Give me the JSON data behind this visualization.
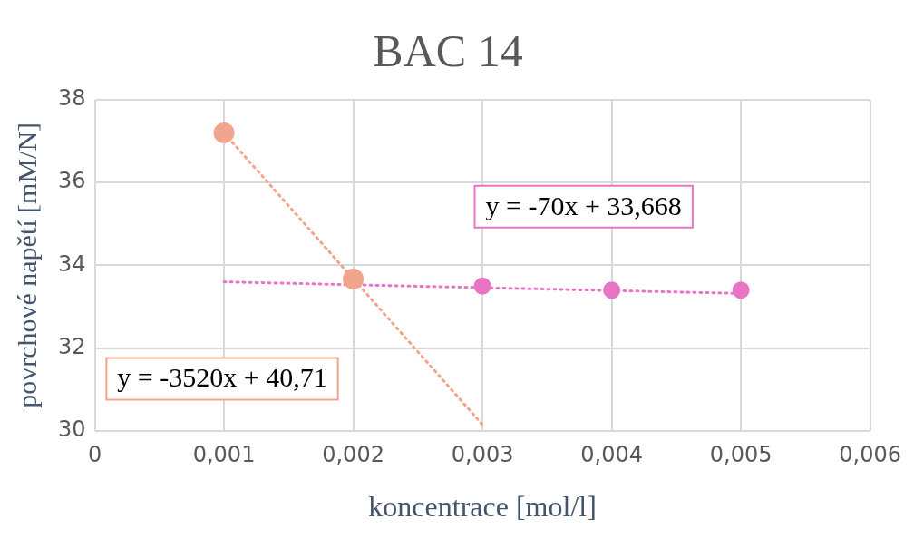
{
  "chart_data": {
    "type": "scatter",
    "title": "BAC 14",
    "xlabel": "koncentrace [mol/l]",
    "ylabel": "povrchové napětí [mM/N]",
    "xlim": [
      0,
      0.006
    ],
    "ylim": [
      30,
      38
    ],
    "xticks": [
      0,
      {
        "value": 0.001,
        "label": "0,001"
      },
      {
        "value": 0.002,
        "label": "0,002"
      },
      {
        "value": 0.003,
        "label": "0,003"
      },
      {
        "value": 0.004,
        "label": "0,004"
      },
      {
        "value": 0.005,
        "label": "0,005"
      },
      {
        "value": 0.006,
        "label": "0,006"
      }
    ],
    "yticks": [
      30,
      32,
      34,
      36,
      38
    ],
    "grid": true,
    "legend": false,
    "marker": "circle",
    "series": [
      {
        "color": "#f0a58c",
        "x": [
          0.001,
          0.002
        ],
        "values": [
          37.2,
          33.67
        ]
      },
      {
        "color": "#e874c6",
        "x": [
          0.003,
          0.004,
          0.005
        ],
        "values": [
          33.5,
          33.4,
          33.4
        ]
      },
      {
        "type": "line",
        "color": "#f0a58c",
        "line_style": "dotted",
        "marker": "none",
        "x": [
          0.001,
          0.003
        ],
        "values": [
          37.2,
          30.15
        ]
      },
      {
        "type": "line",
        "color": "#e874c6",
        "line_style": "dotted",
        "marker": "none",
        "x": [
          0.001,
          0.005
        ],
        "values": [
          33.6,
          33.32
        ]
      }
    ],
    "annotations": [
      "y = -3520x + 40,71",
      "y = -70x + 33,668"
    ]
  }
}
